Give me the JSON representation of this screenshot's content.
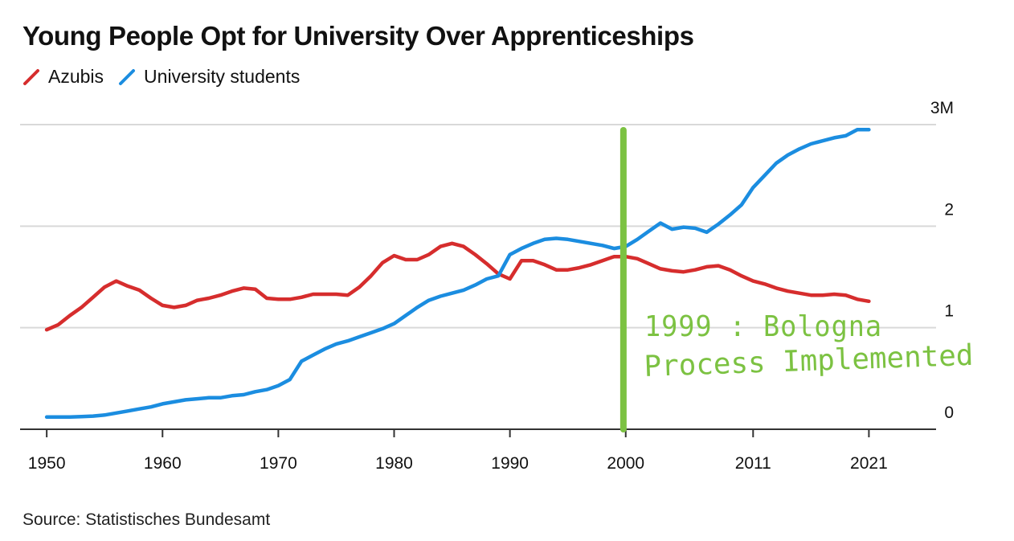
{
  "title": "Young People Opt for University Over Apprenticeships",
  "source": "Source: Statistisches Bundesamt",
  "annotation": {
    "line1": "1999 : Bologna",
    "line2": "Process Implemented"
  },
  "colors": {
    "azubis": "#d62d2d",
    "students": "#1b8de0",
    "annotation": "#7cc242",
    "grid": "#d9d9d9",
    "axis": "#333333"
  },
  "legend": [
    {
      "name": "Azubis",
      "color": "#d62d2d"
    },
    {
      "name": "University students",
      "color": "#1b8de0"
    }
  ],
  "chart_data": {
    "type": "line",
    "title": "Young People Opt for University Over Apprenticeships",
    "xlabel": "",
    "ylabel": "",
    "ylim": [
      0,
      3
    ],
    "y_ticks": [
      0,
      1,
      2,
      3
    ],
    "y_tick_labels": [
      "0",
      "1",
      "2",
      "3M"
    ],
    "x_ticks": [
      1950,
      1960,
      1970,
      1980,
      1990,
      2000,
      2011,
      2021
    ],
    "x_tick_labels": [
      "1950",
      "1960",
      "1970",
      "1980",
      "1990",
      "2000",
      "2011",
      "2021"
    ],
    "xlim": [
      1947.7,
      2026.8
    ],
    "annotation_year": 1999.8,
    "series": [
      {
        "name": "Azubis",
        "color": "#d62d2d",
        "points": [
          [
            1950,
            0.98
          ],
          [
            1951,
            1.03
          ],
          [
            1952,
            1.12
          ],
          [
            1953,
            1.2
          ],
          [
            1954,
            1.3
          ],
          [
            1955,
            1.4
          ],
          [
            1956,
            1.46
          ],
          [
            1957,
            1.41
          ],
          [
            1958,
            1.37
          ],
          [
            1959,
            1.29
          ],
          [
            1960,
            1.22
          ],
          [
            1961,
            1.2
          ],
          [
            1962,
            1.22
          ],
          [
            1963,
            1.27
          ],
          [
            1964,
            1.29
          ],
          [
            1965,
            1.32
          ],
          [
            1966,
            1.36
          ],
          [
            1967,
            1.39
          ],
          [
            1968,
            1.38
          ],
          [
            1969,
            1.29
          ],
          [
            1970,
            1.28
          ],
          [
            1971,
            1.28
          ],
          [
            1972,
            1.3
          ],
          [
            1973,
            1.33
          ],
          [
            1974,
            1.33
          ],
          [
            1975,
            1.33
          ],
          [
            1976,
            1.32
          ],
          [
            1977,
            1.4
          ],
          [
            1978,
            1.51
          ],
          [
            1979,
            1.64
          ],
          [
            1980,
            1.71
          ],
          [
            1981,
            1.67
          ],
          [
            1982,
            1.67
          ],
          [
            1983,
            1.72
          ],
          [
            1984,
            1.8
          ],
          [
            1985,
            1.83
          ],
          [
            1986,
            1.8
          ],
          [
            1987,
            1.72
          ],
          [
            1988,
            1.63
          ],
          [
            1989,
            1.53
          ],
          [
            1990,
            1.48
          ],
          [
            1991,
            1.66
          ],
          [
            1992,
            1.66
          ],
          [
            1993,
            1.62
          ],
          [
            1994,
            1.57
          ],
          [
            1995,
            1.57
          ],
          [
            1996,
            1.59
          ],
          [
            1997,
            1.62
          ],
          [
            1998,
            1.66
          ],
          [
            1999,
            1.7
          ],
          [
            2000,
            1.7
          ],
          [
            2001,
            1.68
          ],
          [
            2002,
            1.63
          ],
          [
            2003,
            1.58
          ],
          [
            2004,
            1.56
          ],
          [
            2005,
            1.55
          ],
          [
            2006,
            1.57
          ],
          [
            2007,
            1.6
          ],
          [
            2008,
            1.61
          ],
          [
            2009,
            1.57
          ],
          [
            2010,
            1.51
          ],
          [
            2011,
            1.46
          ],
          [
            2012,
            1.43
          ],
          [
            2013,
            1.39
          ],
          [
            2014,
            1.36
          ],
          [
            2015,
            1.34
          ],
          [
            2016,
            1.32
          ],
          [
            2017,
            1.32
          ],
          [
            2018,
            1.33
          ],
          [
            2019,
            1.32
          ],
          [
            2020,
            1.28
          ],
          [
            2021,
            1.26
          ]
        ]
      },
      {
        "name": "University students",
        "color": "#1b8de0",
        "points": [
          [
            1950,
            0.12
          ],
          [
            1951,
            0.12
          ],
          [
            1952,
            0.12
          ],
          [
            1953,
            0.125
          ],
          [
            1954,
            0.13
          ],
          [
            1955,
            0.14
          ],
          [
            1956,
            0.16
          ],
          [
            1957,
            0.18
          ],
          [
            1958,
            0.2
          ],
          [
            1959,
            0.22
          ],
          [
            1960,
            0.25
          ],
          [
            1961,
            0.27
          ],
          [
            1962,
            0.29
          ],
          [
            1963,
            0.3
          ],
          [
            1964,
            0.31
          ],
          [
            1965,
            0.31
          ],
          [
            1966,
            0.33
          ],
          [
            1967,
            0.34
          ],
          [
            1968,
            0.37
          ],
          [
            1969,
            0.39
          ],
          [
            1970,
            0.43
          ],
          [
            1971,
            0.49
          ],
          [
            1972,
            0.67
          ],
          [
            1973,
            0.73
          ],
          [
            1974,
            0.79
          ],
          [
            1975,
            0.84
          ],
          [
            1976,
            0.87
          ],
          [
            1977,
            0.91
          ],
          [
            1978,
            0.95
          ],
          [
            1979,
            0.99
          ],
          [
            1980,
            1.04
          ],
          [
            1981,
            1.12
          ],
          [
            1982,
            1.2
          ],
          [
            1983,
            1.27
          ],
          [
            1984,
            1.31
          ],
          [
            1985,
            1.34
          ],
          [
            1986,
            1.37
          ],
          [
            1987,
            1.42
          ],
          [
            1988,
            1.48
          ],
          [
            1989,
            1.51
          ],
          [
            1990,
            1.72
          ],
          [
            1991,
            1.78
          ],
          [
            1992,
            1.83
          ],
          [
            1993,
            1.87
          ],
          [
            1994,
            1.88
          ],
          [
            1995,
            1.87
          ],
          [
            1996,
            1.85
          ],
          [
            1997,
            1.83
          ],
          [
            1998,
            1.81
          ],
          [
            1999,
            1.78
          ],
          [
            2000,
            1.8
          ],
          [
            2001,
            1.87
          ],
          [
            2002,
            1.95
          ],
          [
            2003,
            2.03
          ],
          [
            2004,
            1.97
          ],
          [
            2005,
            1.99
          ],
          [
            2006,
            1.98
          ],
          [
            2007,
            1.94
          ],
          [
            2008,
            2.02
          ],
          [
            2009,
            2.11
          ],
          [
            2010,
            2.21
          ],
          [
            2011,
            2.38
          ],
          [
            2012,
            2.5
          ],
          [
            2013,
            2.62
          ],
          [
            2014,
            2.7
          ],
          [
            2015,
            2.76
          ],
          [
            2016,
            2.81
          ],
          [
            2017,
            2.84
          ],
          [
            2018,
            2.87
          ],
          [
            2019,
            2.89
          ],
          [
            2020,
            2.95
          ],
          [
            2021,
            2.95
          ]
        ]
      }
    ]
  }
}
